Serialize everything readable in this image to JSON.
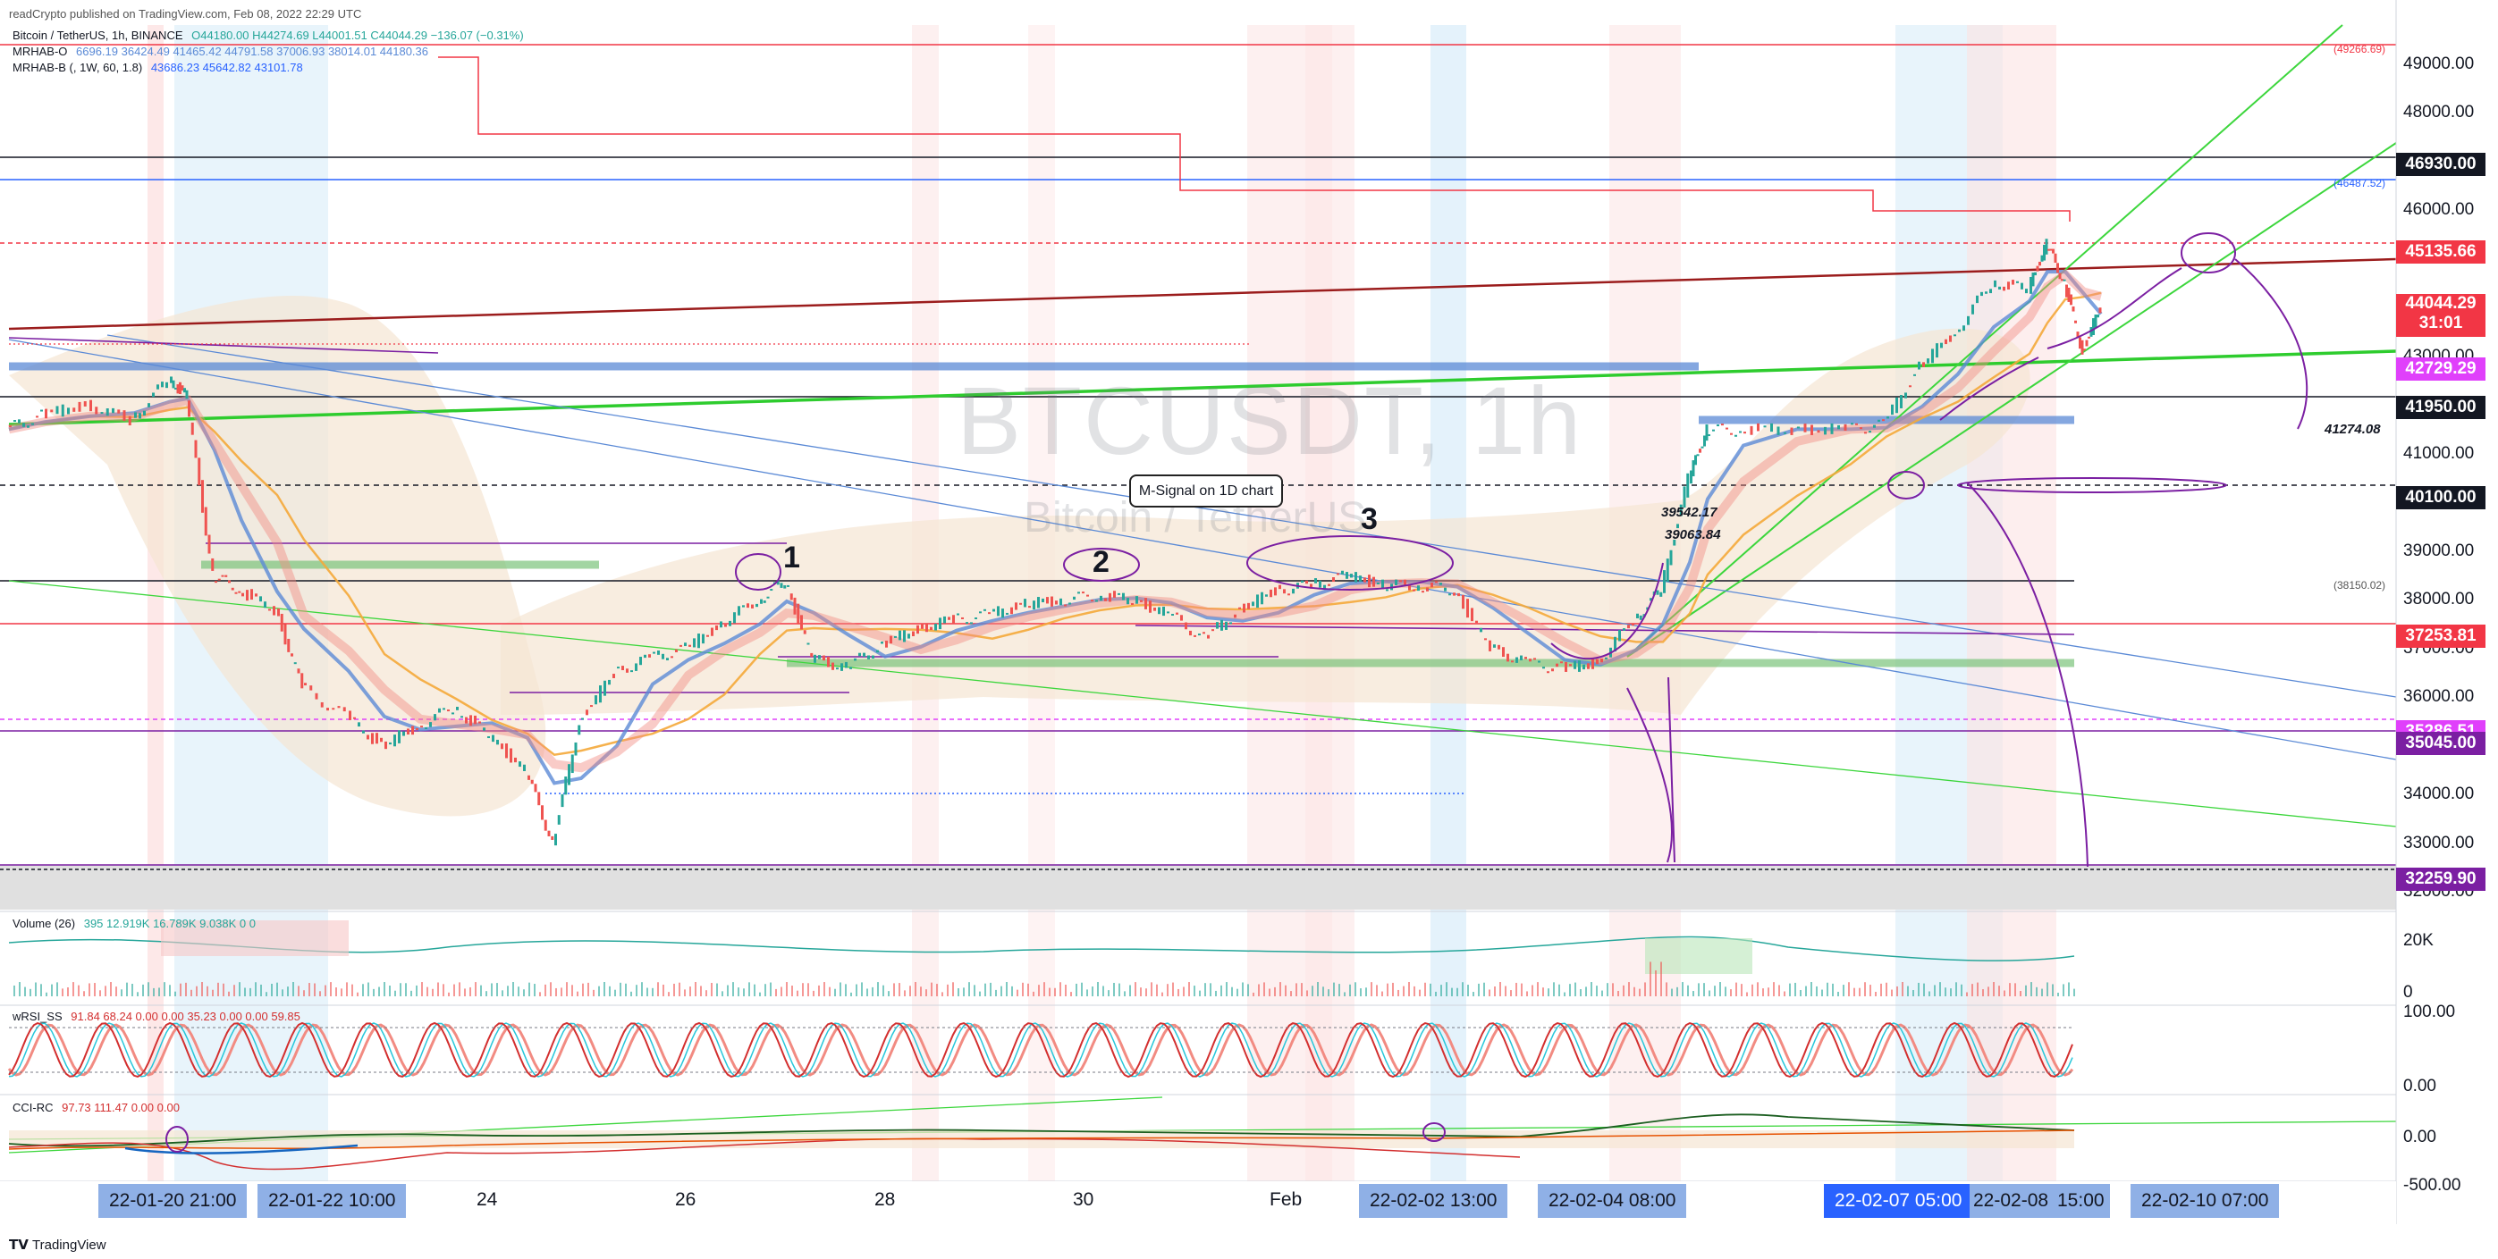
{
  "publisher": "readCrypto published on TradingView.com, Feb 08, 2022 22:29 UTC",
  "legend": [
    {
      "name": "Bitcoin / TetherUS, 1h, BINANCE",
      "values": "O44180.00  H44274.69  L44001.51  C44044.29  −136.07 (−0.31%)"
    },
    {
      "name": "MRHAB-O",
      "values": "6696.19  36424.49  41465.42  44791.58  37006.93  38014.01  44180.36"
    },
    {
      "name": "MRHAB-B (, 1W, 60, 1.8)",
      "values": "43686.23  45642.82  43101.78"
    }
  ],
  "watermark": {
    "symbol": "BTCUSDT, 1h",
    "name": "Bitcoin / TetherUS"
  },
  "callout": "M-Signal on 1D chart",
  "annotations": [
    "1",
    "2",
    "3"
  ],
  "notes": {
    "n1": "39542.17",
    "n2": "39063.84",
    "n3": "41274.08",
    "n4": "(46487.52)",
    "n5": "(49266.69)",
    "n6": "(38150.02)"
  },
  "chart_data": {
    "type": "line",
    "title": "BTCUSDT, 1h",
    "y_axis_ticks": [
      "49000.00",
      "48000.00",
      "47000.00",
      "46000.00",
      "45000.00",
      "44000.00",
      "43000.00",
      "42000.00",
      "41000.00",
      "40000.00",
      "39000.00",
      "38000.00",
      "37000.00",
      "36000.00",
      "35000.00",
      "34000.00",
      "33000.00",
      "32000.00"
    ],
    "ylim": [
      31600,
      49800
    ],
    "price_labels": [
      {
        "value": "46930.00",
        "color": "#131722"
      },
      {
        "value": "45135.66",
        "color": "#f23645"
      },
      {
        "value": "44044.29",
        "color": "#f23645",
        "extra": "31:01"
      },
      {
        "value": "42729.29",
        "color": "#e040fb"
      },
      {
        "value": "41950.00",
        "color": "#131722"
      },
      {
        "value": "40100.00",
        "color": "#131722"
      },
      {
        "value": "37253.81",
        "color": "#f23645"
      },
      {
        "value": "35286.51",
        "color": "#e040fb"
      },
      {
        "value": "35045.00",
        "color": "#7b1fa2"
      },
      {
        "value": "32259.90",
        "color": "#7b1fa2"
      }
    ],
    "x_axis_labels": [
      "24",
      "26",
      "28",
      "30",
      "Feb"
    ],
    "x_axis_boxes": [
      {
        "label": "22-01-20   21:00",
        "dark": false
      },
      {
        "label": "22-01-22   10:00",
        "dark": false
      },
      {
        "label": "22-02-02   13:00",
        "dark": false
      },
      {
        "label": "22-02-04   08:00",
        "dark": false
      },
      {
        "label": "22-02-07   05:00",
        "dark": true
      },
      {
        "label": "22-02-08",
        "dark": false
      },
      {
        "label": "15:00",
        "dark": false
      },
      {
        "label": "22-02-10   07:00",
        "dark": false
      }
    ],
    "price_path": [
      [
        0,
        41500
      ],
      [
        40,
        41800
      ],
      [
        90,
        42000
      ],
      [
        140,
        41700
      ],
      [
        180,
        42500
      ],
      [
        200,
        42200
      ],
      [
        230,
        38500
      ],
      [
        260,
        38200
      ],
      [
        300,
        37800
      ],
      [
        330,
        36200
      ],
      [
        380,
        35600
      ],
      [
        420,
        35000
      ],
      [
        460,
        35400
      ],
      [
        500,
        35800
      ],
      [
        540,
        35200
      ],
      [
        580,
        34500
      ],
      [
        610,
        33000
      ],
      [
        640,
        35500
      ],
      [
        680,
        36500
      ],
      [
        720,
        36800
      ],
      [
        760,
        37000
      ],
      [
        800,
        37500
      ],
      [
        840,
        38000
      ],
      [
        870,
        38400
      ],
      [
        900,
        36800
      ],
      [
        940,
        36600
      ],
      [
        980,
        37100
      ],
      [
        1020,
        37400
      ],
      [
        1060,
        37600
      ],
      [
        1100,
        37700
      ],
      [
        1140,
        37900
      ],
      [
        1180,
        38000
      ],
      [
        1220,
        38100
      ],
      [
        1260,
        38000
      ],
      [
        1300,
        37700
      ],
      [
        1340,
        37200
      ],
      [
        1380,
        37800
      ],
      [
        1420,
        38200
      ],
      [
        1460,
        38300
      ],
      [
        1500,
        38500
      ],
      [
        1540,
        38300
      ],
      [
        1580,
        38300
      ],
      [
        1620,
        38200
      ],
      [
        1660,
        37000
      ],
      [
        1700,
        36700
      ],
      [
        1740,
        36600
      ],
      [
        1780,
        36700
      ],
      [
        1820,
        37600
      ],
      [
        1850,
        38200
      ],
      [
        1880,
        40500
      ],
      [
        1900,
        41500
      ],
      [
        1940,
        41500
      ],
      [
        2000,
        41500
      ],
      [
        2060,
        41500
      ],
      [
        2100,
        41600
      ],
      [
        2140,
        42800
      ],
      [
        2180,
        43500
      ],
      [
        2220,
        44500
      ],
      [
        2260,
        44400
      ],
      [
        2280,
        45300
      ],
      [
        2300,
        44500
      ],
      [
        2320,
        43100
      ],
      [
        2340,
        44000
      ]
    ],
    "volume": {
      "label": "Volume (26)",
      "values": "395  12.919K  16.789K  9.038K  0  0",
      "ticks": [
        "20K",
        "0"
      ]
    },
    "rsi": {
      "label": "wRSI_SS",
      "values": "91.84  68.24  0.00  0.00  35.23  0.00  0.00  59.85",
      "ticks": [
        "100.00",
        "0.00"
      ]
    },
    "cci": {
      "label": "CCI-RC",
      "values": "97.73  111.47  0.00  0.00",
      "ticks": [
        "0.00",
        "-500.00"
      ]
    },
    "legend_position": "top-left",
    "grid": true
  },
  "colors": {
    "up": "#26a69a",
    "down": "#ef5350",
    "bg_red": "#f7c7c7",
    "bg_blue": "#c7e3f7",
    "band": "#f5e6d3"
  },
  "footer": "TradingView"
}
